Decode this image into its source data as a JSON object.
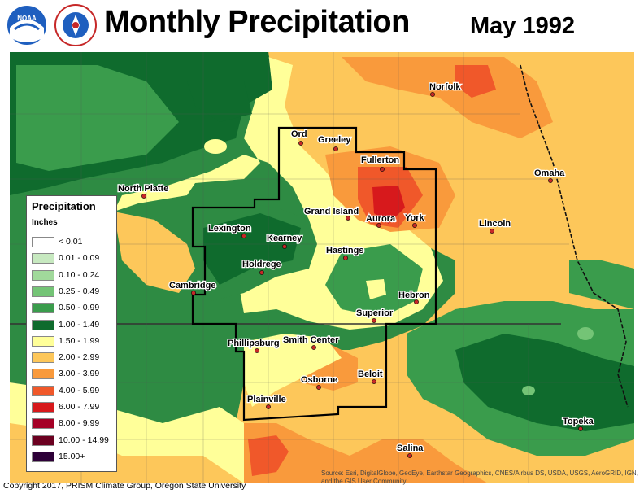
{
  "title": "Monthly Precipitation",
  "date": "May 1992",
  "logos": [
    {
      "name": "noaa-logo",
      "text": "NOAA"
    },
    {
      "name": "nws-logo",
      "text": "NATIONAL WEATHER SERVICE"
    }
  ],
  "legend": {
    "title": "Precipitation",
    "unit": "Inches",
    "items": [
      {
        "label": "< 0.01",
        "color": "#ffffff"
      },
      {
        "label": "0.01 - 0.09",
        "color": "#c7e9c0"
      },
      {
        "label": "0.10 - 0.24",
        "color": "#a1d99b"
      },
      {
        "label": "0.25 - 0.49",
        "color": "#74c476"
      },
      {
        "label": "0.50 - 0.99",
        "color": "#3a9c4c"
      },
      {
        "label": "1.00 - 1.49",
        "color": "#0f6b2d"
      },
      {
        "label": "1.50 - 1.99",
        "color": "#ffff99"
      },
      {
        "label": "2.00 - 2.99",
        "color": "#fdc75a"
      },
      {
        "label": "3.00 - 3.99",
        "color": "#f99a3c"
      },
      {
        "label": "4.00 - 5.99",
        "color": "#f0582a"
      },
      {
        "label": "6.00 - 7.99",
        "color": "#d7191c"
      },
      {
        "label": "8.00 - 9.99",
        "color": "#a50026"
      },
      {
        "label": "10.00 - 14.99",
        "color": "#6b0020"
      },
      {
        "label": "15.00+",
        "color": "#2d0038"
      }
    ]
  },
  "cities": [
    "Norfolk",
    "Ord",
    "Greeley",
    "Fullerton",
    "Omaha",
    "North Platte",
    "Grand Island",
    "Aurora",
    "York",
    "Lincoln",
    "Lexington",
    "Kearney",
    "Hastings",
    "Holdrege",
    "Cambridge",
    "Hebron",
    "Superior",
    "Phillipsburg",
    "Smith Center",
    "Beloit",
    "Osborne",
    "Plainville",
    "Topeka",
    "Salina"
  ],
  "copyright": "Copyright 2017, PRISM Climate Group, Oregon State University",
  "source": "Source: Esri, DigitalGlobe, GeoEye, Earthstar Geographics, CNES/Airbus DS, USDA, USGS, AeroGRID, IGN, and the GIS User Community"
}
